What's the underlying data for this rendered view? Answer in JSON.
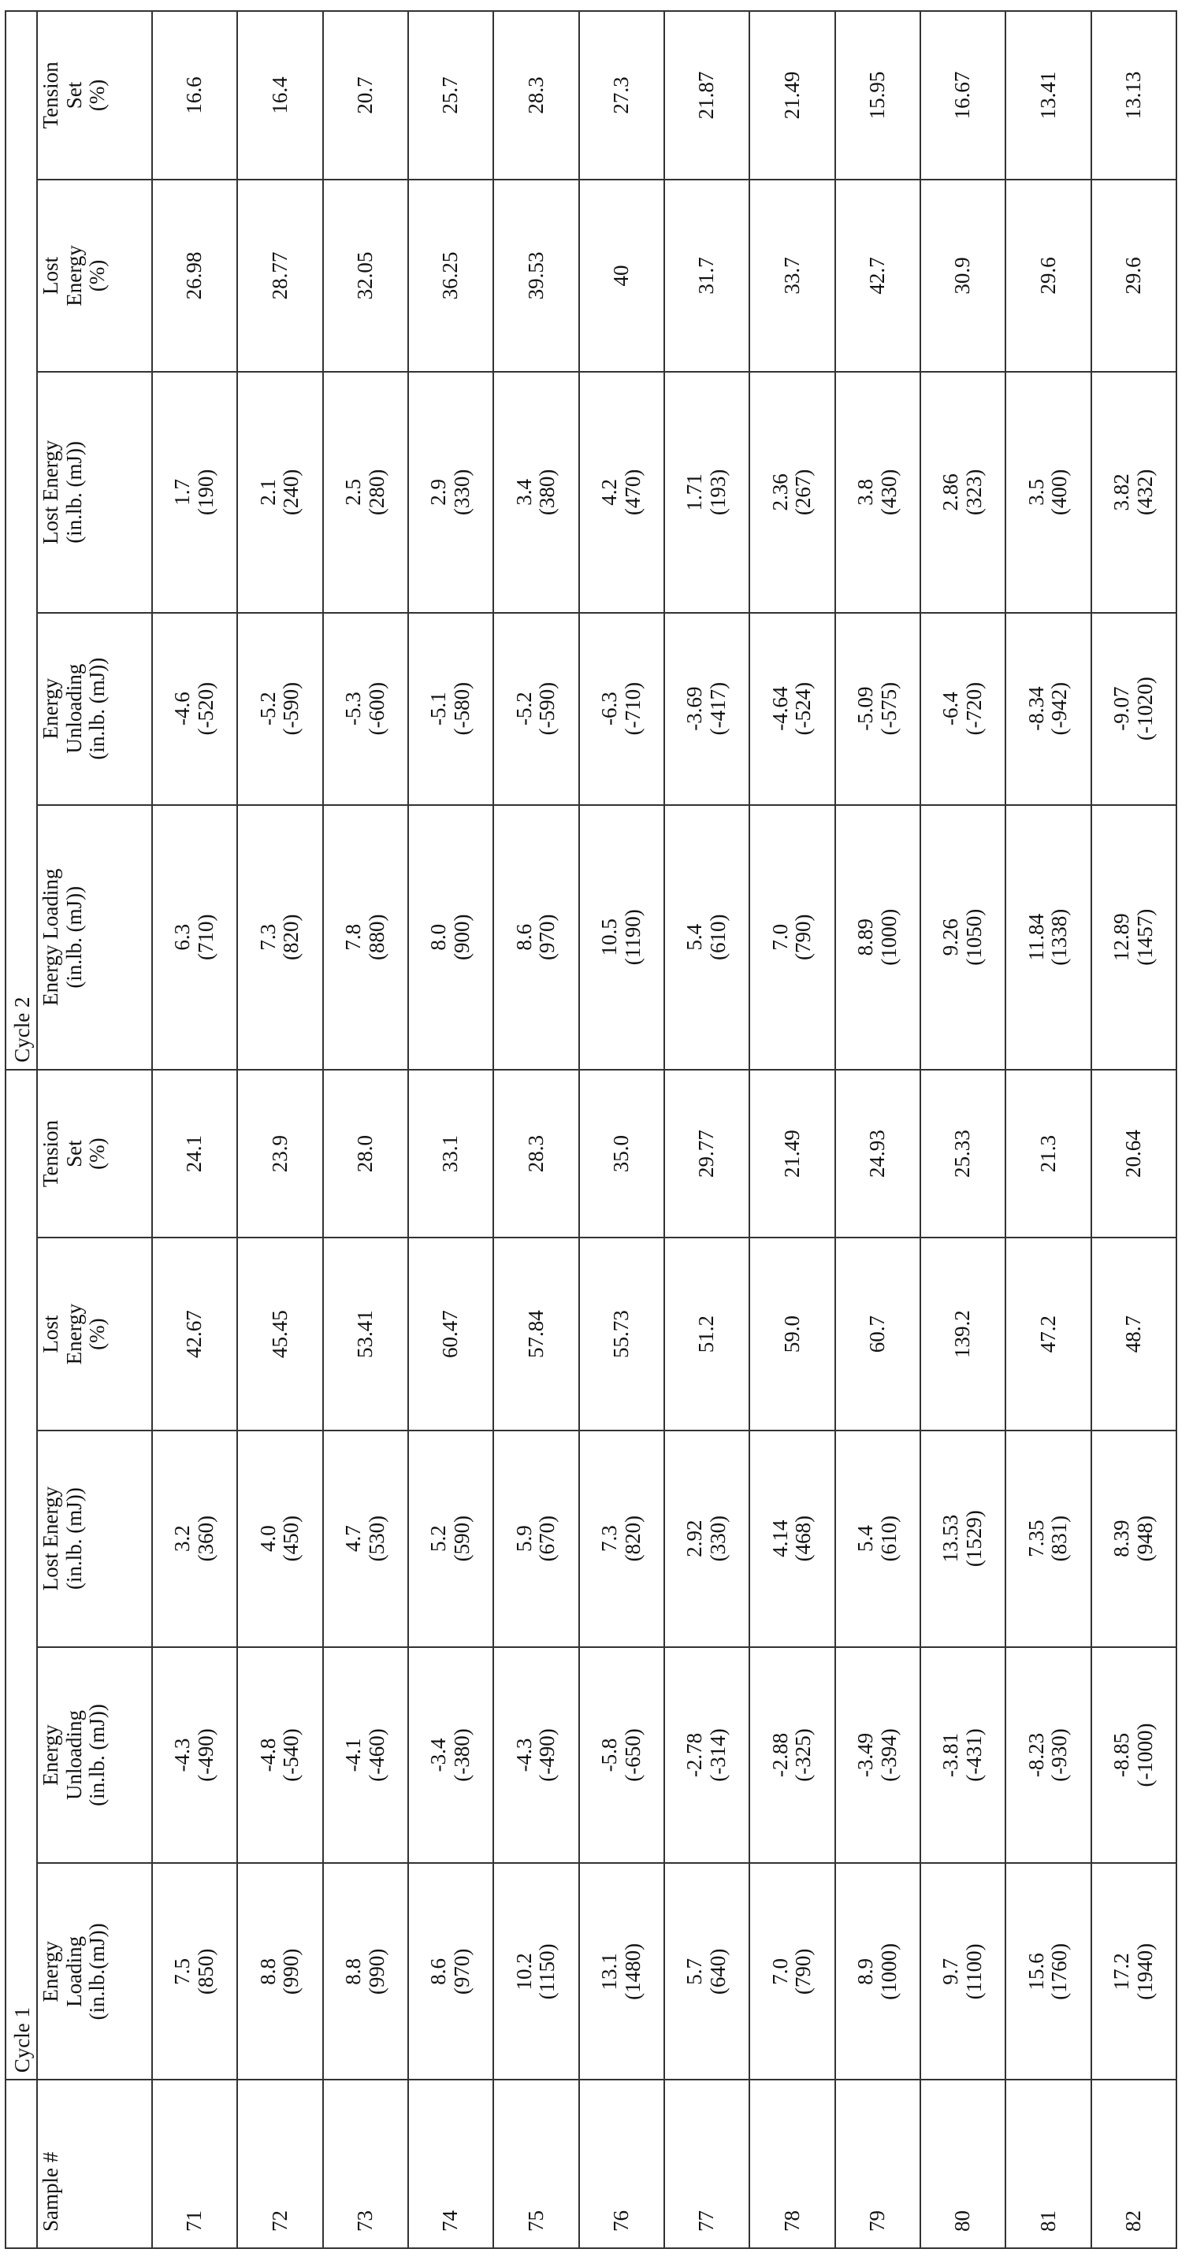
{
  "table": {
    "group_headers": [
      "Cycle 1",
      "Cycle 2"
    ],
    "sample_header": "Sample #",
    "column_headers": [
      [
        "Energy",
        "Loading",
        "(in.lb.(mJ))"
      ],
      [
        "Energy",
        "Unloading",
        "(in.lb. (mJ))"
      ],
      [
        "Lost Energy",
        "(in.lb. (mJ))"
      ],
      [
        "Lost",
        "Energy",
        "(%)"
      ],
      [
        "Tension",
        "Set",
        "(%)"
      ],
      [
        "Energy Loading",
        "(in.lb. (mJ))"
      ],
      [
        "Energy",
        "Unloading",
        "(in.lb. (mJ))"
      ],
      [
        "Lost Energy",
        "(in.lb. (mJ))"
      ],
      [
        "Lost",
        "Energy",
        "(%)"
      ],
      [
        "Tension",
        "Set",
        "(%)"
      ]
    ],
    "rows": [
      [
        "71",
        [
          "7.5",
          "(850)"
        ],
        [
          "-4.3",
          "(-490)"
        ],
        [
          "3.2",
          "(360)"
        ],
        "42.67",
        "24.1",
        [
          "6.3",
          "(710)"
        ],
        [
          "-4.6",
          "(-520)"
        ],
        [
          "1.7",
          "(190)"
        ],
        "26.98",
        "16.6"
      ],
      [
        "72",
        [
          "8.8",
          "(990)"
        ],
        [
          "-4.8",
          "(-540)"
        ],
        [
          "4.0",
          "(450)"
        ],
        "45.45",
        "23.9",
        [
          "7.3",
          "(820)"
        ],
        [
          "-5.2",
          "(-590)"
        ],
        [
          "2.1",
          "(240)"
        ],
        "28.77",
        "16.4"
      ],
      [
        "73",
        [
          "8.8",
          "(990)"
        ],
        [
          "-4.1",
          "(-460)"
        ],
        [
          "4.7",
          "(530)"
        ],
        "53.41",
        "28.0",
        [
          "7.8",
          "(880)"
        ],
        [
          "-5.3",
          "(-600)"
        ],
        [
          "2.5",
          "(280)"
        ],
        "32.05",
        "20.7"
      ],
      [
        "74",
        [
          "8.6",
          "(970)"
        ],
        [
          "-3.4",
          "(-380)"
        ],
        [
          "5.2",
          "(590)"
        ],
        "60.47",
        "33.1",
        [
          "8.0",
          "(900)"
        ],
        [
          "-5.1",
          "(-580)"
        ],
        [
          "2.9",
          "(330)"
        ],
        "36.25",
        "25.7"
      ],
      [
        "75",
        [
          "10.2",
          "(1150)"
        ],
        [
          "-4.3",
          "(-490)"
        ],
        [
          "5.9",
          "(670)"
        ],
        "57.84",
        "28.3",
        [
          "8.6",
          "(970)"
        ],
        [
          "-5.2",
          "(-590)"
        ],
        [
          "3.4",
          "(380)"
        ],
        "39.53",
        "28.3"
      ],
      [
        "76",
        [
          "13.1",
          "(1480)"
        ],
        [
          "-5.8",
          "(-650)"
        ],
        [
          "7.3",
          "(820)"
        ],
        "55.73",
        "35.0",
        [
          "10.5",
          "(1190)"
        ],
        [
          "-6.3",
          "(-710)"
        ],
        [
          "4.2",
          "(470)"
        ],
        "40",
        "27.3"
      ],
      [
        "77",
        [
          "5.7",
          "(640)"
        ],
        [
          "-2.78",
          "(-314)"
        ],
        [
          "2.92",
          "(330)"
        ],
        "51.2",
        "29.77",
        [
          "5.4",
          "(610)"
        ],
        [
          "-3.69",
          "(-417)"
        ],
        [
          "1.71",
          "(193)"
        ],
        "31.7",
        "21.87"
      ],
      [
        "78",
        [
          "7.0",
          "(790)"
        ],
        [
          "-2.88",
          "(-325)"
        ],
        [
          "4.14",
          "(468)"
        ],
        "59.0",
        "21.49",
        [
          "7.0",
          "(790)"
        ],
        [
          "-4.64",
          "(-524)"
        ],
        [
          "2.36",
          "(267)"
        ],
        "33.7",
        "21.49"
      ],
      [
        "79",
        [
          "8.9",
          "(1000)"
        ],
        [
          "-3.49",
          "(-394)"
        ],
        [
          "5.4",
          "(610)"
        ],
        "60.7",
        "24.93",
        [
          "8.89",
          "(1000)"
        ],
        [
          "-5.09",
          "(-575)"
        ],
        [
          "3.8",
          "(430)"
        ],
        "42.7",
        "15.95"
      ],
      [
        "80",
        [
          "9.7",
          "(1100)"
        ],
        [
          "-3.81",
          "(-431)"
        ],
        [
          "13.53",
          "(1529)"
        ],
        "139.2",
        "25.33",
        [
          "9.26",
          "(1050)"
        ],
        [
          "-6.4",
          "(-720)"
        ],
        [
          "2.86",
          "(323)"
        ],
        "30.9",
        "16.67"
      ],
      [
        "81",
        [
          "15.6",
          "(1760)"
        ],
        [
          "-8.23",
          "(-930)"
        ],
        [
          "7.35",
          "(831)"
        ],
        "47.2",
        "21.3",
        [
          "11.84",
          "(1338)"
        ],
        [
          "-8.34",
          "(-942)"
        ],
        [
          "3.5",
          "(400)"
        ],
        "29.6",
        "13.41"
      ],
      [
        "82",
        [
          "17.2",
          "(1940)"
        ],
        [
          "-8.85",
          "(-1000)"
        ],
        [
          "8.39",
          "(948)"
        ],
        "48.7",
        "20.64",
        [
          "12.89",
          "(1457)"
        ],
        [
          "-9.07",
          "(-1020)"
        ],
        [
          "3.82",
          "(432)"
        ],
        "29.6",
        "13.13"
      ]
    ]
  }
}
